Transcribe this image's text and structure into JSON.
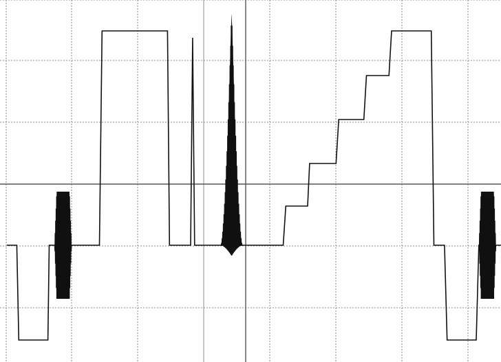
{
  "chart_data": {
    "type": "line",
    "title": "",
    "xlabel": "",
    "ylabel": "",
    "grid": true,
    "grid_divisions": {
      "x": 8,
      "y": 6
    },
    "xlim": [
      0,
      7.6
    ],
    "ylim": [
      -2.7,
      2.7
    ],
    "colors": {
      "trace": "#111111",
      "grid": "#8c8c8c",
      "center_axis": "#555555",
      "background": "#fefefe"
    },
    "series": [
      {
        "values": [
          [
            0.0,
            -0.87
          ],
          [
            0.15,
            -0.87
          ],
          [
            0.18,
            -2.25
          ],
          [
            0.62,
            -2.25
          ],
          [
            0.64,
            -0.87
          ],
          [
            0.68,
            -0.87
          ],
          [
            0.72,
            -0.87
          ],
          [
            1.3,
            -0.87
          ],
          [
            1.4,
            -0.87
          ],
          [
            1.44,
            2.25
          ],
          [
            2.43,
            2.25
          ],
          [
            2.46,
            -0.87
          ],
          [
            2.78,
            -0.87
          ],
          [
            2.81,
            2.15
          ],
          [
            2.84,
            -0.87
          ],
          [
            3.2,
            -0.87
          ],
          [
            3.31,
            -0.87
          ],
          [
            3.36,
            -0.87
          ],
          [
            3.68,
            -0.87
          ],
          [
            4.18,
            -0.87
          ],
          [
            4.22,
            -0.3
          ],
          [
            4.55,
            -0.3
          ],
          [
            4.58,
            0.32
          ],
          [
            4.98,
            0.32
          ],
          [
            5.02,
            0.96
          ],
          [
            5.4,
            0.96
          ],
          [
            5.44,
            1.6
          ],
          [
            5.78,
            1.6
          ],
          [
            5.82,
            2.25
          ],
          [
            6.42,
            2.25
          ],
          [
            6.46,
            -0.87
          ],
          [
            6.62,
            -0.87
          ],
          [
            6.66,
            -2.25
          ],
          [
            7.1,
            -2.25
          ],
          [
            7.14,
            -0.87
          ],
          [
            7.6,
            -0.87
          ]
        ]
      }
    ],
    "bursts": [
      {
        "center": 0.85,
        "baseline": -0.87,
        "amplitude": 0.78,
        "width": 0.25,
        "shape": "flat"
      },
      {
        "center": 3.4,
        "baseline": -0.87,
        "amplitude": 3.35,
        "width": 0.32,
        "shape": "peak"
      },
      {
        "center": 7.27,
        "baseline": -0.87,
        "amplitude": 0.78,
        "width": 0.25,
        "shape": "flat"
      }
    ]
  }
}
